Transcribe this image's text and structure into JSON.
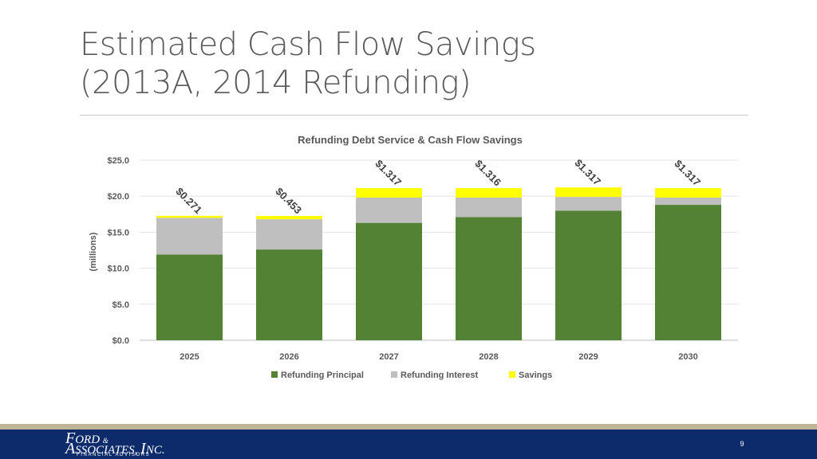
{
  "slide": {
    "title_line1": "Estimated Cash Flow Savings",
    "title_line2": "(2013A, 2014 Refunding)",
    "page_number": "9"
  },
  "logo": {
    "line1_initial": "F",
    "line1_rest": "ORD",
    "line1_amp": "&",
    "line2_initial": "A",
    "line2_rest": "SSOCIATES, ",
    "line2_initial2": "I",
    "line2_rest2": "NC.",
    "tagline": "FINANCIAL ADVISORS"
  },
  "colors": {
    "principal": "#548235",
    "interest": "#bfbfbf",
    "savings": "#ffff00",
    "footer_bar": "#0d2b6b",
    "footer_accent": "#bdb596",
    "text": "#595959"
  },
  "chart_data": {
    "type": "bar",
    "stacked": true,
    "title": "Refunding Debt Service & Cash Flow Savings",
    "ylabel": "(millions)",
    "xlabel": "",
    "ylim": [
      0,
      25
    ],
    "yticks": [
      "$0.0",
      "$5.0",
      "$10.0",
      "$15.0",
      "$20.0",
      "$25.0"
    ],
    "ytick_values": [
      0,
      5,
      10,
      15,
      20,
      25
    ],
    "grid": true,
    "legend_position": "bottom",
    "categories": [
      "2025",
      "2026",
      "2027",
      "2028",
      "2029",
      "2030"
    ],
    "series": [
      {
        "name": "Refunding Principal",
        "color": "#548235",
        "values": [
          11.9,
          12.6,
          16.3,
          17.1,
          18.0,
          18.8
        ]
      },
      {
        "name": "Refunding Interest",
        "color": "#bfbfbf",
        "values": [
          5.1,
          4.2,
          3.5,
          2.7,
          1.9,
          1.0
        ]
      },
      {
        "name": "Savings",
        "color": "#ffff00",
        "values": [
          0.271,
          0.453,
          1.317,
          1.316,
          1.317,
          1.317
        ]
      }
    ],
    "data_labels": [
      "$0.271",
      "$0.453",
      "$1.317",
      "$1.316",
      "$1.317",
      "$1.317"
    ]
  }
}
